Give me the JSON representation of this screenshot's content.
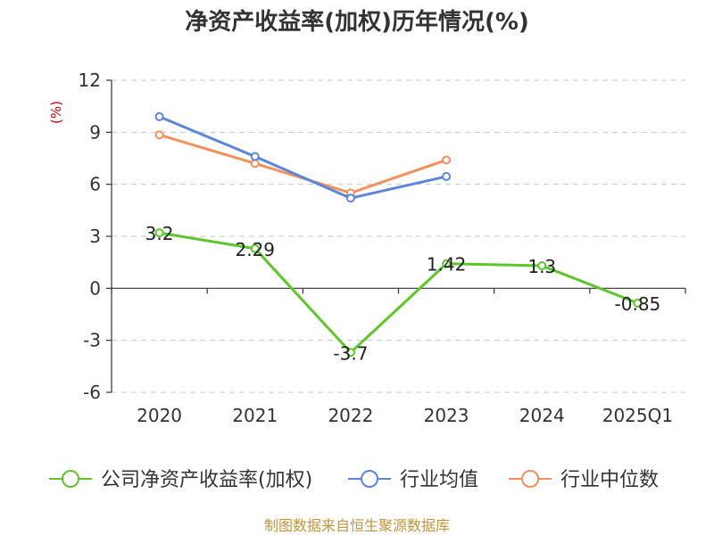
{
  "title": "净资产收益率(加权)历年情况(%)",
  "unit_label": "(%)",
  "source": "制图数据来自恒生聚源数据库",
  "colors": {
    "company": "#5dc62a",
    "industry_avg": "#5b86db",
    "industry_median": "#f5905a",
    "unit": "#cc0000",
    "source": "#c0953c"
  },
  "chart_data": {
    "type": "line",
    "categories": [
      "2020",
      "2021",
      "2022",
      "2023",
      "2024",
      "2025Q1"
    ],
    "ylim": [
      -6,
      12
    ],
    "yticks": [
      12,
      9,
      6,
      3,
      0,
      -3,
      -6
    ],
    "grid": true,
    "legend_position": "bottom",
    "series": [
      {
        "name": "公司净资产收益率(加权)",
        "color": "#5dc62a",
        "values": [
          3.2,
          2.29,
          -3.7,
          1.42,
          1.3,
          -0.85
        ],
        "labels": [
          "3.2",
          "2.29",
          "-3.7",
          "1.42",
          "1.3",
          "-0.85"
        ],
        "show_labels": true
      },
      {
        "name": "行业均值",
        "color": "#5b86db",
        "values": [
          9.9,
          7.6,
          5.2,
          6.45,
          null,
          null
        ],
        "show_labels": false
      },
      {
        "name": "行业中位数",
        "color": "#f5905a",
        "values": [
          8.85,
          7.2,
          5.5,
          7.4,
          null,
          null
        ],
        "show_labels": false
      }
    ]
  }
}
